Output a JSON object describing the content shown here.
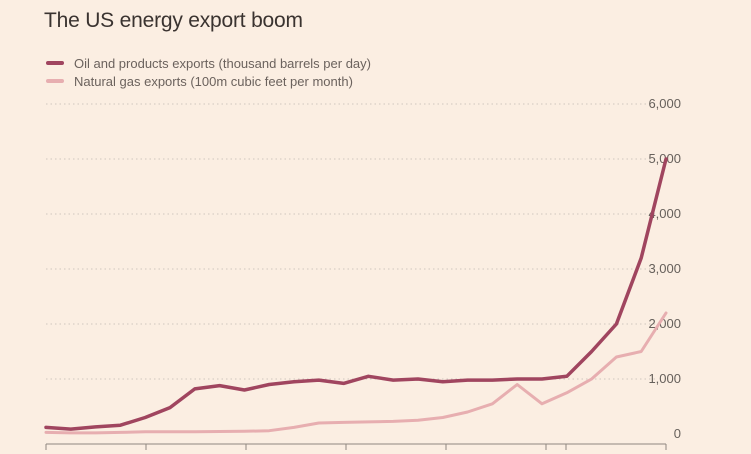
{
  "title": "The US energy export boom",
  "colors": {
    "oil": "#a0455f",
    "gas": "#e7aeb0",
    "grid": "#cfc6bd",
    "axis": "#8f8780"
  },
  "chart_data": {
    "type": "line",
    "title": "The US energy export boom",
    "ylim": [
      0,
      6000
    ],
    "yticks": [
      0,
      1000,
      2000,
      3000,
      4000,
      5000,
      6000
    ],
    "ytick_labels": [
      "0",
      "1,000",
      "2,000",
      "3,000",
      "4,000",
      "5,000",
      "6,000"
    ],
    "grid": true,
    "legend_position": "top-left",
    "x": [
      0,
      4,
      8,
      12,
      16,
      20,
      24,
      28,
      32,
      36,
      40,
      44,
      48,
      52,
      56,
      60,
      64,
      68,
      72,
      76,
      80,
      84,
      88,
      92,
      96,
      100
    ],
    "series": [
      {
        "name": "Oil and products exports (thousand barrels per day)",
        "color": "#a0455f",
        "values": [
          120,
          90,
          130,
          160,
          300,
          480,
          820,
          880,
          800,
          900,
          950,
          980,
          920,
          1050,
          980,
          1000,
          950,
          980,
          980,
          1000,
          1000,
          1050,
          1500,
          2000,
          3200,
          5000
        ]
      },
      {
        "name": "Natural gas exports (100m cubic feet per month)",
        "color": "#e7aeb0",
        "values": [
          30,
          20,
          20,
          30,
          40,
          40,
          40,
          45,
          50,
          60,
          120,
          200,
          210,
          220,
          230,
          250,
          300,
          400,
          550,
          900,
          550,
          750,
          1000,
          1400,
          1500,
          2200
        ]
      }
    ]
  }
}
